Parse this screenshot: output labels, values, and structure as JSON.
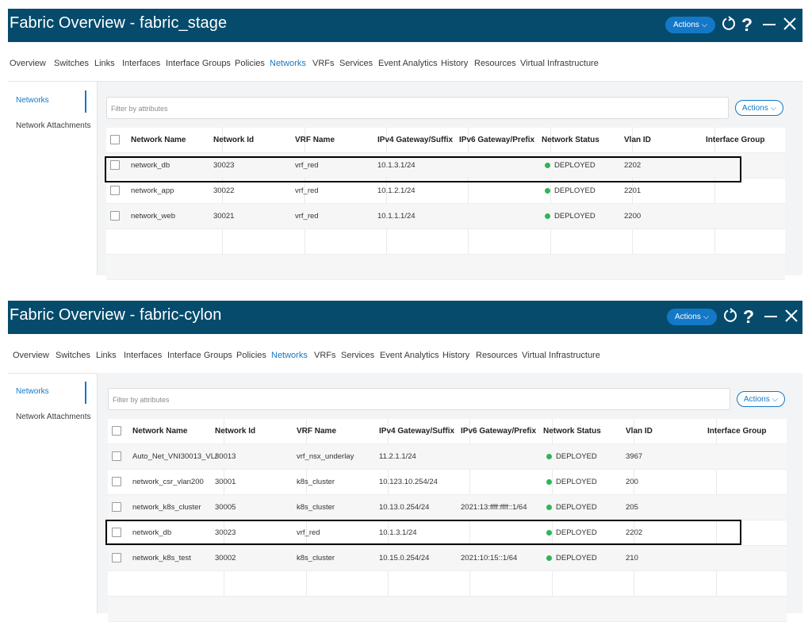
{
  "panels": [
    {
      "title": "Fabric Overview - fabric_stage",
      "header_actions_label": "Actions ⌵",
      "tabs": [
        "Overview",
        "Switches",
        "Links",
        "Interfaces",
        "Interface Groups",
        "Policies",
        "Networks",
        "VRFs",
        "Services",
        "Event Analytics",
        "History",
        "Resources",
        "Virtual Infrastructure"
      ],
      "active_tab": "Networks",
      "sidebar": [
        "Networks",
        "Network Attachments"
      ],
      "filter_placeholder": "Filter by attributes",
      "actions_label": "Actions ⌵",
      "columns": [
        "Network Name",
        "Network Id",
        "VRF Name",
        "IPv4 Gateway/Suffix",
        "IPv6 Gateway/Prefix",
        "Network Status",
        "Vlan ID",
        "Interface Group"
      ],
      "rows": [
        {
          "name": "network_db",
          "id": "30023",
          "vrf": "vrf_red",
          "ipv4": "10.1.3.1/24",
          "ipv6": "",
          "status": "DEPLOYED",
          "vlan": "2202",
          "group": ""
        },
        {
          "name": "network_app",
          "id": "30022",
          "vrf": "vrf_red",
          "ipv4": "10.1.2.1/24",
          "ipv6": "",
          "status": "DEPLOYED",
          "vlan": "2201",
          "group": ""
        },
        {
          "name": "network_web",
          "id": "30021",
          "vrf": "vrf_red",
          "ipv4": "10.1.1.1/24",
          "ipv6": "",
          "status": "DEPLOYED",
          "vlan": "2200",
          "group": ""
        }
      ]
    },
    {
      "title": "Fabric Overview - fabric-cylon",
      "header_actions_label": "Actions ⌵",
      "tabs": [
        "Overview",
        "Switches",
        "Links",
        "Interfaces",
        "Interface Groups",
        "Policies",
        "Networks",
        "VRFs",
        "Services",
        "Event Analytics",
        "History",
        "Resources",
        "Virtual Infrastructure"
      ],
      "active_tab": "Networks",
      "sidebar": [
        "Networks",
        "Network Attachments"
      ],
      "filter_placeholder": "Filter by attributes",
      "actions_label": "Actions ⌵",
      "columns": [
        "Network Name",
        "Network Id",
        "VRF Name",
        "IPv4 Gateway/Suffix",
        "IPv6 Gateway/Prefix",
        "Network Status",
        "Vlan ID",
        "Interface Group"
      ],
      "rows": [
        {
          "name": "Auto_Net_VNI30013_VL/",
          "id": "30013",
          "vrf": "vrf_nsx_underlay",
          "ipv4": "11.2.1.1/24",
          "ipv6": "",
          "status": "DEPLOYED",
          "vlan": "3967",
          "group": ""
        },
        {
          "name": "network_csr_vlan200",
          "id": "30001",
          "vrf": "k8s_cluster",
          "ipv4": "10.123.10.254/24",
          "ipv6": "",
          "status": "DEPLOYED",
          "vlan": "200",
          "group": ""
        },
        {
          "name": "network_k8s_cluster",
          "id": "30005",
          "vrf": "k8s_cluster",
          "ipv4": "10.13.0.254/24",
          "ipv6": "2021:13:ffff:ffff::1/64",
          "status": "DEPLOYED",
          "vlan": "205",
          "group": ""
        },
        {
          "name": "network_db",
          "id": "30023",
          "vrf": "vrf_red",
          "ipv4": "10.1.3.1/24",
          "ipv6": "",
          "status": "DEPLOYED",
          "vlan": "2202",
          "group": ""
        },
        {
          "name": "network_k8s_test",
          "id": "30002",
          "vrf": "k8s_cluster",
          "ipv4": "10.15.0.254/24",
          "ipv6": "2021:10:15::1/64",
          "status": "DEPLOYED",
          "vlan": "210",
          "group": ""
        }
      ]
    }
  ],
  "colors": {
    "header_bg": "#064b6c",
    "accent": "#1479c6",
    "status_deployed": "#2fb45a"
  },
  "icons": [
    "refresh-icon",
    "help-icon",
    "minimize-icon",
    "close-icon"
  ]
}
